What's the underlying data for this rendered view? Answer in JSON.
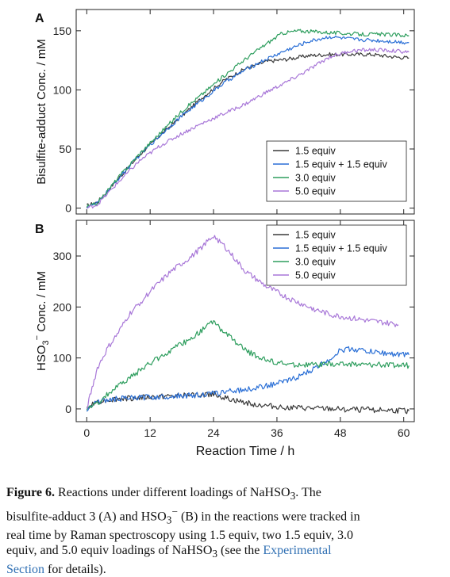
{
  "chart_data": [
    {
      "type": "line",
      "panel_label": "A",
      "ylabel": "Bisulfite-adduct Conc. / mM",
      "xlim": [
        -2,
        62
      ],
      "ylim": [
        -5,
        168
      ],
      "yticks": [
        0,
        50,
        100,
        150
      ],
      "grid": false,
      "legend_position": "bottom-right",
      "series": [
        {
          "name": "1.5 equiv",
          "color": "#3a3a3a",
          "x": [
            0,
            2,
            6,
            10,
            14,
            18,
            22,
            26,
            30,
            34,
            36,
            38,
            42,
            46,
            50,
            54,
            58,
            61
          ],
          "y": [
            2,
            5,
            25,
            45,
            62,
            78,
            94,
            108,
            118,
            124,
            125,
            126,
            129,
            130,
            130,
            130,
            128,
            127
          ]
        },
        {
          "name": "1.5 equiv + 1.5 equiv",
          "color": "#2a6fd6",
          "x": [
            0,
            2,
            6,
            10,
            14,
            18,
            22,
            26,
            30,
            34,
            38,
            42,
            46,
            50,
            54,
            58,
            61
          ],
          "y": [
            1,
            4,
            25,
            45,
            62,
            78,
            92,
            106,
            117,
            126,
            134,
            141,
            145,
            143,
            142,
            141,
            140
          ]
        },
        {
          "name": "3.0 equiv",
          "color": "#2e9e5e",
          "x": [
            0,
            2,
            6,
            10,
            14,
            18,
            22,
            26,
            30,
            34,
            37,
            40,
            44,
            48,
            52,
            56,
            61
          ],
          "y": [
            1,
            4,
            26,
            46,
            64,
            82,
            97,
            112,
            126,
            139,
            148,
            150,
            149,
            148,
            147,
            147,
            146
          ]
        },
        {
          "name": "5.0 equiv",
          "color": "#a877d8",
          "x": [
            0,
            2,
            6,
            10,
            14,
            18,
            22,
            26,
            30,
            34,
            38,
            42,
            46,
            50,
            54,
            58,
            61
          ],
          "y": [
            0,
            3,
            22,
            40,
            53,
            63,
            72,
            80,
            88,
            98,
            107,
            117,
            128,
            133,
            134,
            133,
            132
          ]
        }
      ]
    },
    {
      "type": "line",
      "panel_label": "B",
      "ylabel_main": "HSO",
      "ylabel_sub": "3",
      "ylabel_sup": "−",
      "ylabel_tail": " Conc. / mM",
      "xlabel": "Reaction Time / h",
      "xlim": [
        -2,
        62
      ],
      "ylim": [
        -25,
        370
      ],
      "xticks": [
        0,
        12,
        24,
        36,
        48,
        60
      ],
      "yticks": [
        0,
        100,
        200,
        300
      ],
      "grid": false,
      "legend_position": "top-right",
      "series": [
        {
          "name": "1.5 equiv",
          "color": "#3a3a3a",
          "x": [
            0,
            2,
            6,
            10,
            14,
            18,
            22,
            24,
            26,
            30,
            34,
            38,
            42,
            46,
            50,
            54,
            58,
            61
          ],
          "y": [
            0,
            15,
            20,
            22,
            24,
            26,
            28,
            30,
            22,
            12,
            6,
            3,
            1,
            0,
            -1,
            -2,
            -3,
            -4
          ]
        },
        {
          "name": "1.5 equiv + 1.5 equiv",
          "color": "#2a6fd6",
          "x": [
            0,
            2,
            6,
            10,
            14,
            18,
            22,
            24,
            26,
            30,
            34,
            38,
            42,
            46,
            48,
            50,
            54,
            58,
            61
          ],
          "y": [
            0,
            15,
            20,
            22,
            24,
            26,
            28,
            30,
            33,
            38,
            45,
            55,
            72,
            98,
            115,
            118,
            112,
            108,
            106
          ]
        },
        {
          "name": "3.0 equiv",
          "color": "#2e9e5e",
          "x": [
            0,
            2,
            4,
            8,
            12,
            16,
            20,
            24,
            26,
            30,
            34,
            38,
            42,
            46,
            50,
            54,
            58,
            61
          ],
          "y": [
            0,
            10,
            30,
            60,
            90,
            115,
            140,
            172,
            150,
            115,
            95,
            87,
            86,
            87,
            88,
            87,
            86,
            85
          ]
        },
        {
          "name": "5.0 equiv",
          "color": "#a877d8",
          "x": [
            0,
            1,
            2,
            4,
            6,
            8,
            12,
            16,
            20,
            24,
            26,
            30,
            34,
            38,
            42,
            46,
            50,
            54,
            58,
            59
          ],
          "y": [
            0,
            40,
            80,
            120,
            150,
            185,
            230,
            270,
            300,
            340,
            320,
            270,
            240,
            218,
            200,
            185,
            178,
            172,
            167,
            165
          ]
        }
      ]
    }
  ],
  "caption": {
    "fig_label": "Figure 6.",
    "line1": " Reactions under different loadings of NaHSO",
    "line1_sub": "3",
    "line1_tail": ". The",
    "line2_head": "bisulfite-adduct 3 (A) and HSO",
    "line2_sub": "3",
    "line2_sup": "−",
    "line2_tail": " (B) in the reactions were tracked in",
    "line3": "real time by Raman spectroscopy using 1.5 equiv, two 1.5 equiv, 3.0",
    "line4_head": "equiv, and 5.0 equiv loadings of NaHSO",
    "line4_sub": "3",
    "line4_mid": " (see the ",
    "line4_link": "Experimental",
    "line5_link": "Section",
    "line5_tail": " for details)."
  }
}
